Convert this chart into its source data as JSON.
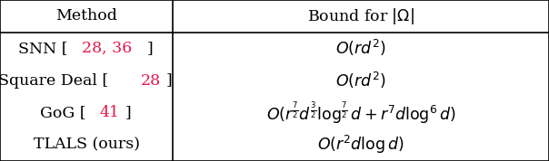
{
  "rows": [
    {
      "method_parts": [
        {
          "text": "SNN [",
          "color": "black"
        },
        {
          "text": "28, 36",
          "color": "#e8174b"
        },
        {
          "text": "]",
          "color": "black"
        }
      ],
      "bound": "$O(rd^2)$"
    },
    {
      "method_parts": [
        {
          "text": "Square Deal [",
          "color": "black"
        },
        {
          "text": "28",
          "color": "#e8174b"
        },
        {
          "text": "]",
          "color": "black"
        }
      ],
      "bound": "$O(rd^2)$"
    },
    {
      "method_parts": [
        {
          "text": "GoG [",
          "color": "black"
        },
        {
          "text": "41",
          "color": "#e8174b"
        },
        {
          "text": "]",
          "color": "black"
        }
      ],
      "bound": "$O(r^{\\frac{7}{2}}d^{\\frac{3}{2}}\\log^{\\frac{7}{2}} d + r^7 d\\log^6 d)$"
    },
    {
      "method_parts": [
        {
          "text": "TLALS (ours)",
          "color": "black"
        }
      ],
      "bound": "$O(r^2 d \\log d)$"
    }
  ],
  "header_method": "Method",
  "header_bound": "Bound for $|\\Omega|$",
  "col_split": 0.315,
  "background_color": "#ffffff",
  "border_color": "#000000",
  "font_size": 12.5,
  "header_font_size": 12.5,
  "red_color": "#e8174b"
}
